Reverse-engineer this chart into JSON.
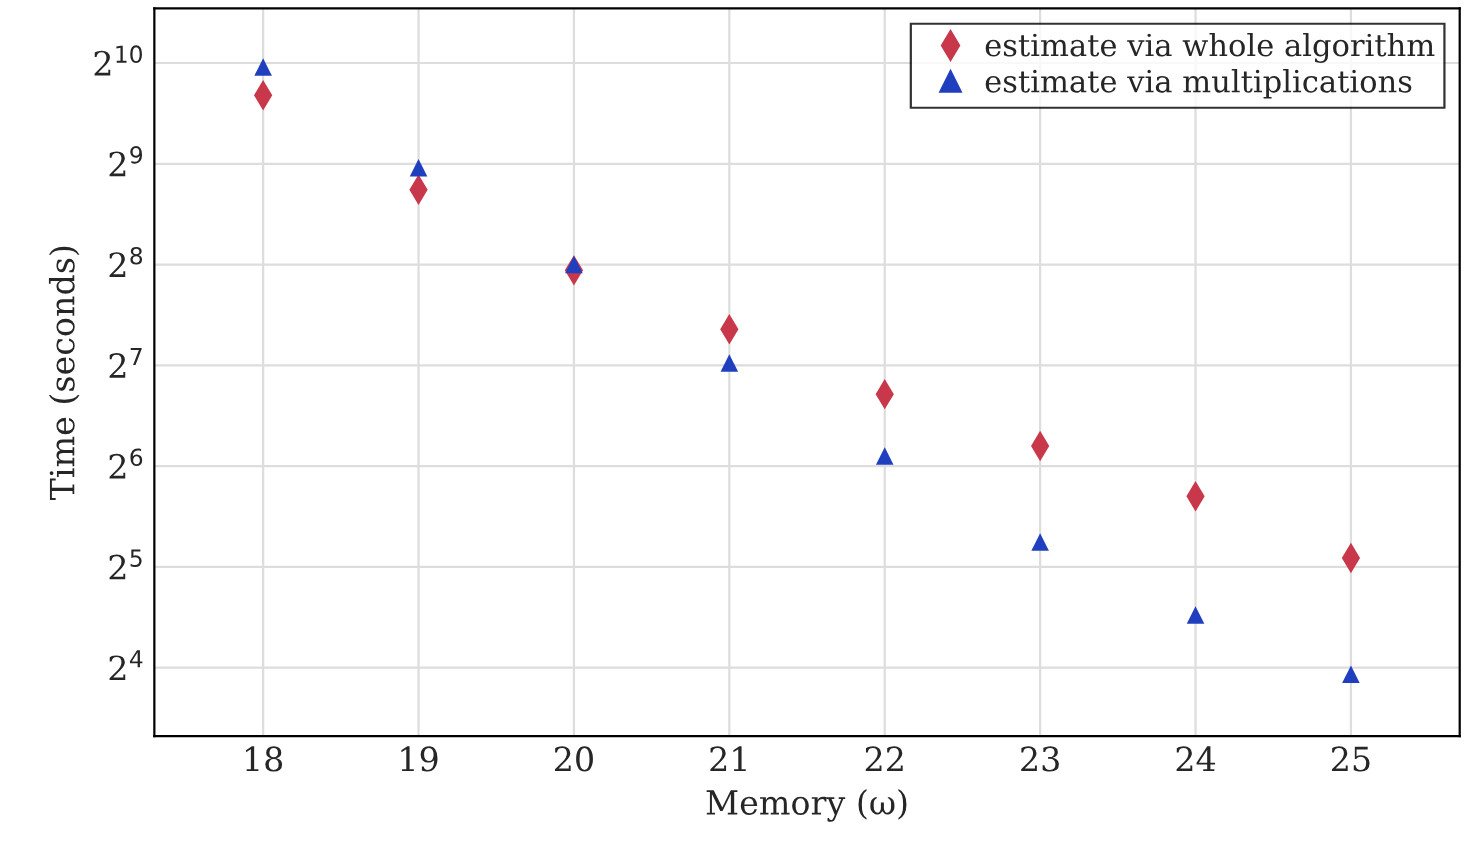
{
  "chart_data": {
    "type": "scatter",
    "xlabel": "Memory (ω)",
    "ylabel": "Time (seconds)",
    "x": [
      18,
      19,
      20,
      21,
      22,
      23,
      24,
      25
    ],
    "series": [
      {
        "name": "estimate via whole algorithm",
        "color": "#c8374a",
        "marker": "diamond",
        "values": [
          820,
          428,
          246,
          164,
          105,
          73.5,
          52,
          34
        ]
      },
      {
        "name": "estimate via multiplications",
        "color": "#1f3fbf",
        "marker": "triangle",
        "values": [
          996,
          498,
          256,
          130,
          68.6,
          38,
          23,
          15.3
        ]
      }
    ],
    "log": "y",
    "xlim": [
      17.3,
      25.7
    ],
    "xticks": [
      18,
      19,
      20,
      21,
      22,
      23,
      24,
      25
    ],
    "ylim": [
      10,
      1490
    ],
    "yticks": [
      {
        "value": 16,
        "label": "2$^{4}$"
      },
      {
        "value": 32,
        "label": "2$^{5}$"
      },
      {
        "value": 64,
        "label": "2$^{6}$"
      },
      {
        "value": 128,
        "label": "2$^{7}$"
      },
      {
        "value": 256,
        "label": "2$^{8}$"
      },
      {
        "value": 512,
        "label": "2$^{9}$"
      },
      {
        "value": 1024,
        "label": "2$^{10}$"
      }
    ],
    "grid": true,
    "legend": "top right"
  }
}
